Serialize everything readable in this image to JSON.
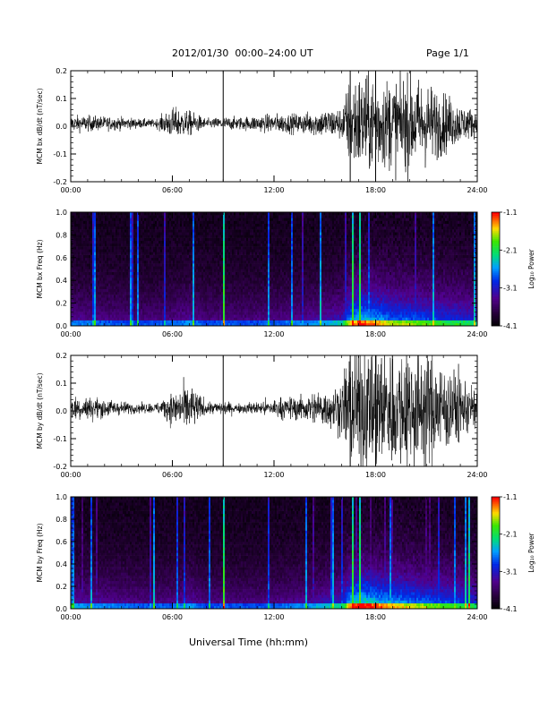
{
  "header": {
    "title": "2012/01/30  00:00–24:00 UT",
    "page": "Page 1/1"
  },
  "xlabel": "Universal Time (hh:mm)",
  "chart_data": [
    {
      "type": "line",
      "ylabel": "MCM bx dB/dt (nT/sec)",
      "xlim": [
        "00:00",
        "24:00"
      ],
      "xticks": [
        "00:00",
        "06:00",
        "12:00",
        "18:00",
        "24:00"
      ],
      "ylim": [
        -0.2,
        0.2
      ],
      "yticks": [
        "-0.2",
        "-0.1",
        "0.0",
        "0.1",
        "0.2"
      ],
      "vertical_lines": [
        "09:00",
        "16:30",
        "18:00"
      ],
      "envelope": {
        "hours": [
          0,
          1,
          2,
          3,
          4,
          5,
          6,
          7,
          8,
          9,
          10,
          11,
          12,
          13,
          14,
          15,
          16,
          16.5,
          17,
          18,
          19,
          20,
          21,
          22,
          23,
          24
        ],
        "amplitude": [
          0.025,
          0.025,
          0.022,
          0.02,
          0.015,
          0.012,
          0.05,
          0.04,
          0.015,
          0.02,
          0.02,
          0.025,
          0.03,
          0.03,
          0.035,
          0.045,
          0.05,
          0.15,
          0.16,
          0.15,
          0.14,
          0.15,
          0.13,
          0.1,
          0.06,
          0.04
        ]
      }
    },
    {
      "type": "heatmap",
      "ylabel": "MCM bx Freq (Hz)",
      "xlim": [
        "00:00",
        "24:00"
      ],
      "xticks": [
        "00:00",
        "06:00",
        "12:00",
        "18:00",
        "24:00"
      ],
      "ylim": [
        0.0,
        1.0
      ],
      "yticks": [
        "0.0",
        "0.2",
        "0.4",
        "0.6",
        "0.8",
        "1.0"
      ],
      "colorbar": {
        "label": "Log₁₀ Power",
        "range": [
          -4.1,
          -1.1
        ],
        "ticks": [
          "-1.1",
          "-2.1",
          "-3.1",
          "-4.1"
        ]
      },
      "activity": {
        "hours": [
          0,
          2,
          4,
          6,
          7,
          8,
          9,
          10,
          12,
          14,
          16,
          16.5,
          17,
          18,
          19,
          20,
          21,
          22,
          23,
          24
        ],
        "level": [
          0.25,
          0.22,
          0.2,
          0.22,
          0.26,
          0.2,
          0.22,
          0.2,
          0.22,
          0.25,
          0.32,
          0.55,
          0.62,
          0.58,
          0.5,
          0.48,
          0.45,
          0.42,
          0.4,
          0.35
        ]
      }
    },
    {
      "type": "line",
      "ylabel": "MCM by dB/dt (nT/sec)",
      "xlim": [
        "00:00",
        "24:00"
      ],
      "xticks": [
        "00:00",
        "06:00",
        "12:00",
        "18:00",
        "24:00"
      ],
      "ylim": [
        -0.2,
        0.2
      ],
      "yticks": [
        "-0.2",
        "-0.1",
        "0.0",
        "0.1",
        "0.2"
      ],
      "vertical_lines": [
        "09:00",
        "16:30",
        "18:00"
      ],
      "envelope": {
        "hours": [
          0,
          1,
          2,
          3,
          4,
          5,
          6,
          7,
          8,
          9,
          10,
          11,
          12,
          13,
          14,
          15,
          16,
          16.5,
          17,
          18,
          19,
          20,
          21,
          22,
          23,
          24
        ],
        "amplitude": [
          0.04,
          0.035,
          0.03,
          0.02,
          0.015,
          0.015,
          0.05,
          0.075,
          0.02,
          0.02,
          0.015,
          0.02,
          0.03,
          0.035,
          0.045,
          0.06,
          0.08,
          0.2,
          0.2,
          0.2,
          0.19,
          0.2,
          0.18,
          0.15,
          0.1,
          0.06
        ]
      }
    },
    {
      "type": "heatmap",
      "ylabel": "MCM by Freq (Hz)",
      "xlim": [
        "00:00",
        "24:00"
      ],
      "xticks": [
        "00:00",
        "06:00",
        "12:00",
        "18:00",
        "24:00"
      ],
      "ylim": [
        0.0,
        1.0
      ],
      "yticks": [
        "0.0",
        "0.2",
        "0.4",
        "0.6",
        "0.8",
        "1.0"
      ],
      "colorbar": {
        "label": "Log₁₀ Power",
        "range": [
          -4.1,
          -1.1
        ],
        "ticks": [
          "-1.1",
          "-2.1",
          "-3.1",
          "-4.1"
        ]
      },
      "activity": {
        "hours": [
          0,
          2,
          4,
          6,
          7,
          8,
          9,
          10,
          12,
          14,
          16,
          16.5,
          17,
          18,
          19,
          20,
          21,
          22,
          23,
          24
        ],
        "level": [
          0.28,
          0.25,
          0.22,
          0.22,
          0.28,
          0.2,
          0.22,
          0.2,
          0.22,
          0.26,
          0.35,
          0.6,
          0.68,
          0.62,
          0.55,
          0.52,
          0.48,
          0.45,
          0.42,
          0.38
        ]
      }
    }
  ]
}
